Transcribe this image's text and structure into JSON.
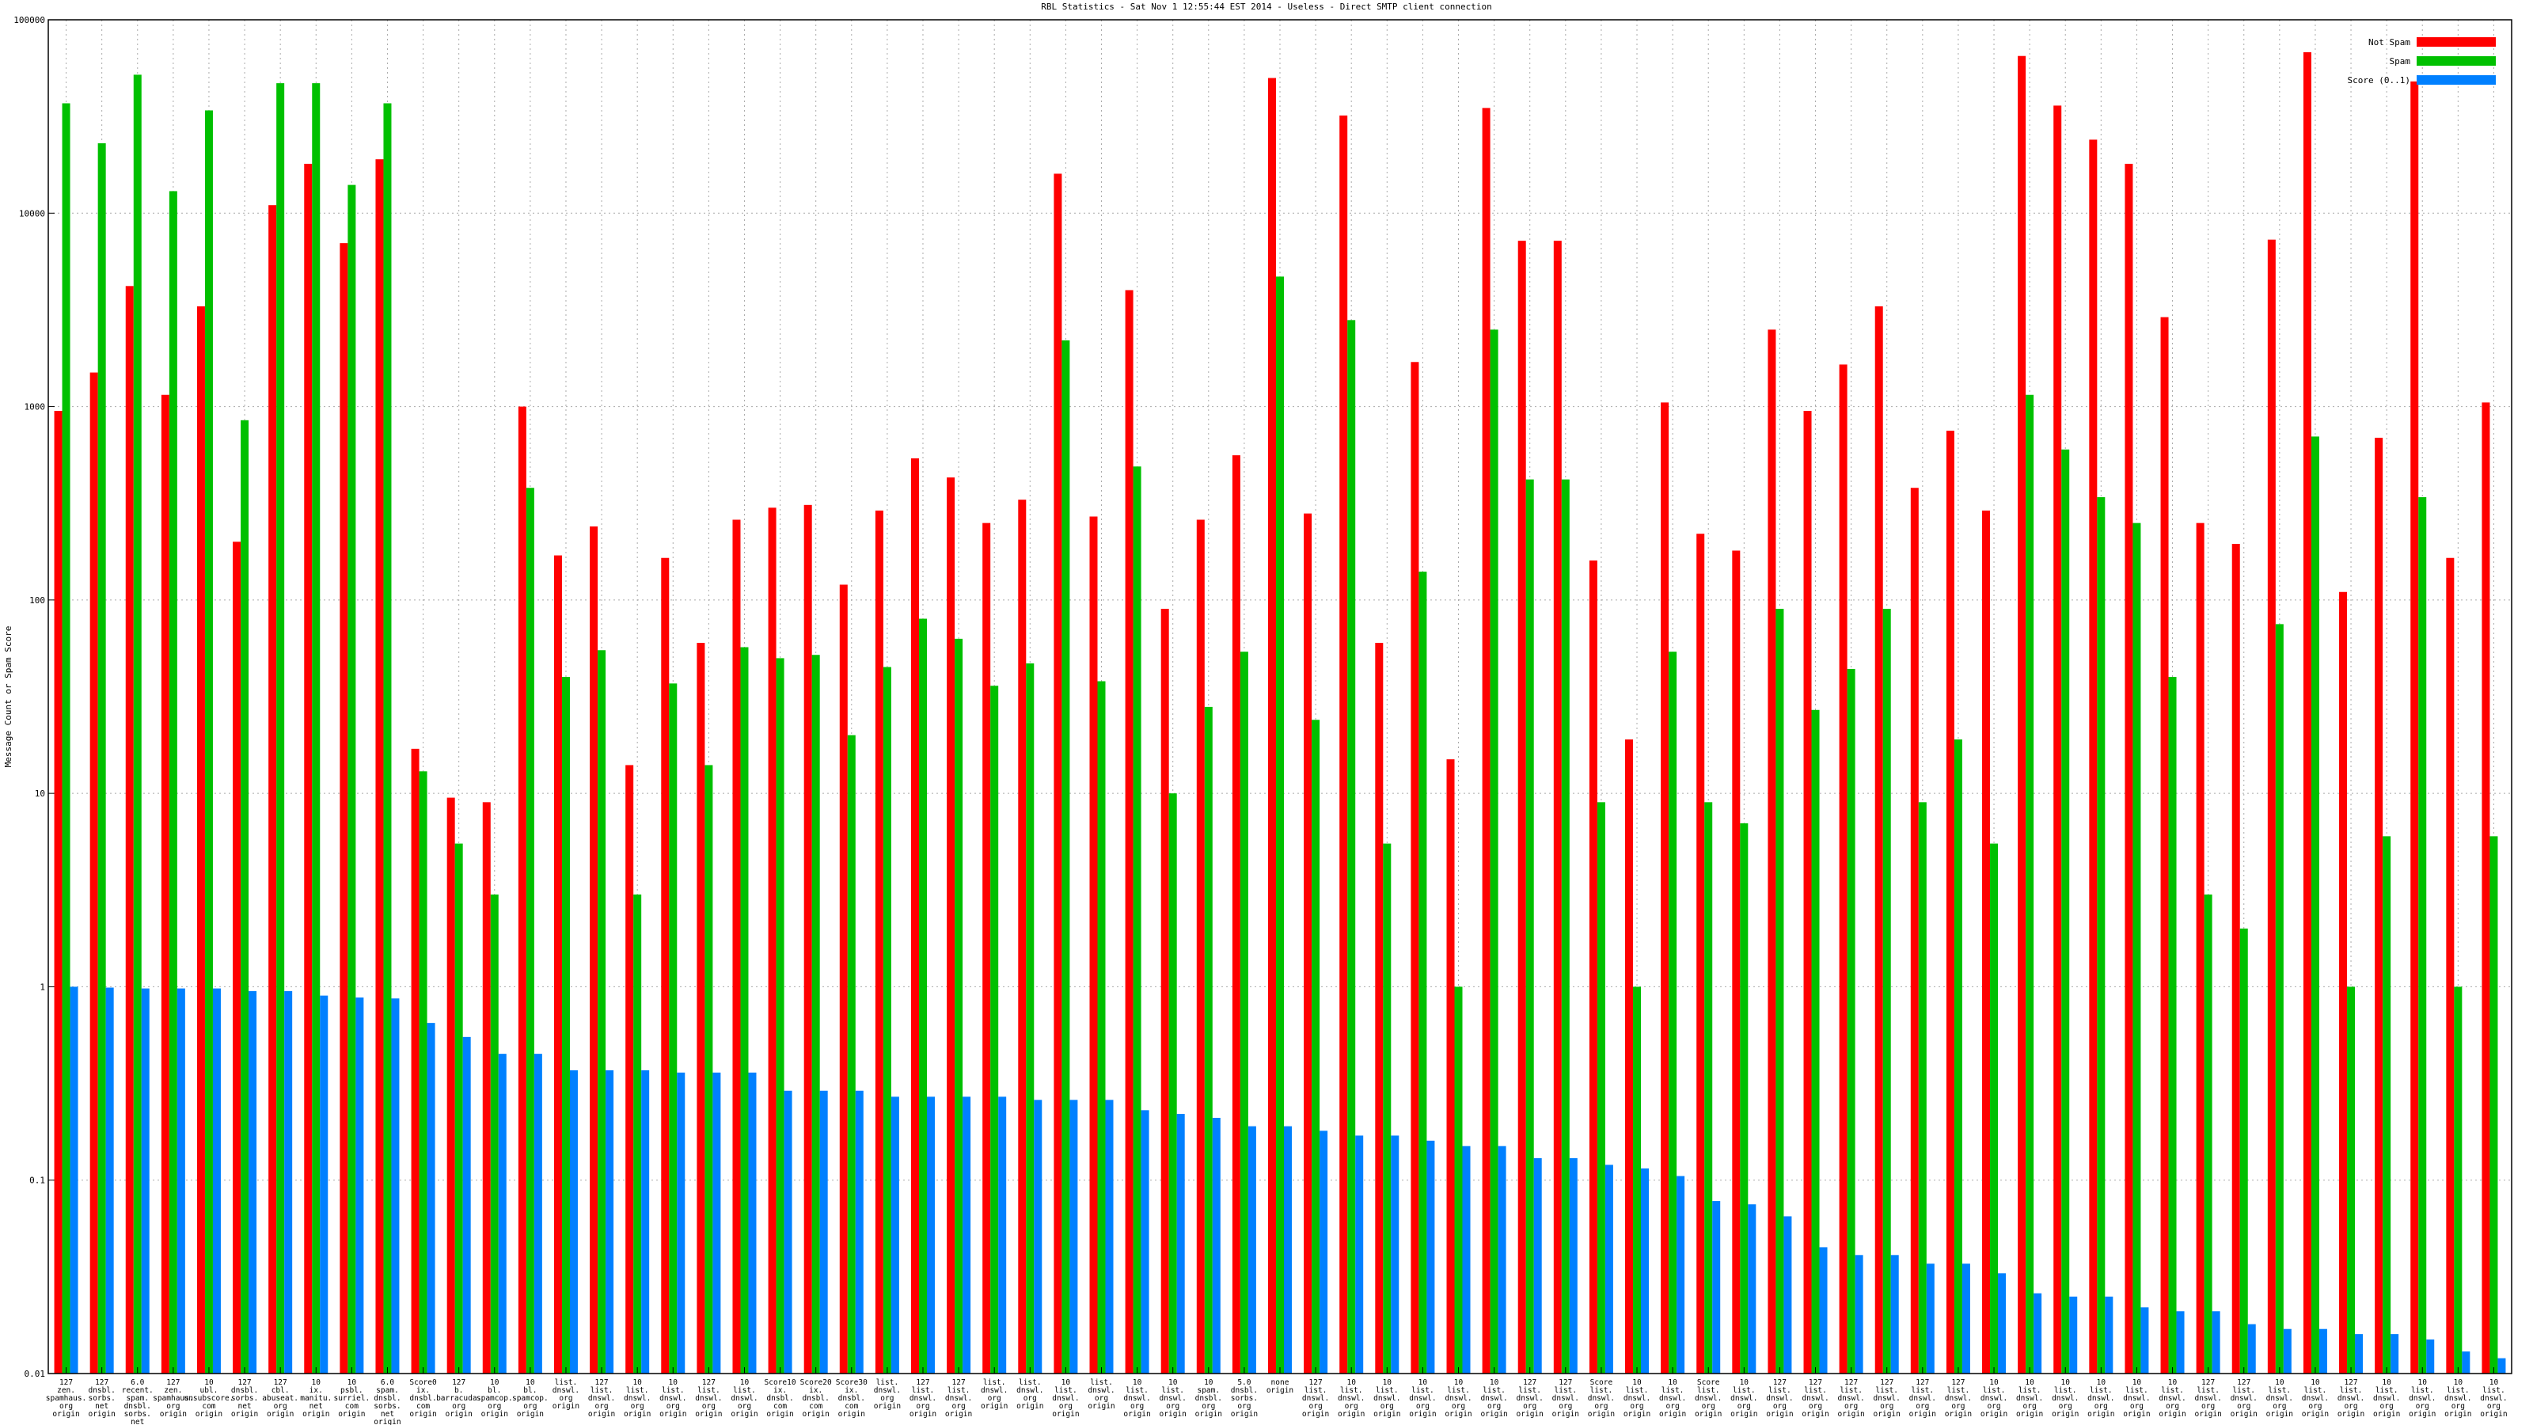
{
  "chart_data": {
    "type": "bar",
    "title": "RBL Statistics - Sat Nov  1 12:55:44 EST 2014 - Useless - Direct SMTP client connection",
    "y_label": "Message Count or Spam Score",
    "log_scale": true,
    "grid": true,
    "legend": "upper right",
    "ylim": [
      0.01,
      100000
    ],
    "yticks": [
      0.01,
      0.1,
      1,
      10,
      100,
      1000,
      10000,
      100000
    ],
    "categories": [
      "127 zen. spamhaus. org origin",
      "127 dnsbl. sorbs. net origin",
      "6.0 recent. spam. dnsbl. sorbs. net origin",
      "127 zen. spamhaus. org origin",
      "10 ubl. unsubscore. com origin",
      "127 dnsbl. sorbs. net origin",
      "127 cbl. abuseat. org origin",
      "10 ix. manitu. net origin",
      "10 psbl. surriel. com origin",
      "6.0 spam. dnsbl. sorbs. net origin",
      "Score0 ix. dnsbl. com origin",
      "127 b. barracuda. org origin",
      "10 bl. spamcop. org origin",
      "10 bl. spamcop. org origin",
      "list. dnswl. org origin",
      "127 list. dnswl. org origin",
      "10 list. dnswl. org origin",
      "10 list. dnswl. org origin",
      "127 list. dnswl. org origin",
      "10 list. dnswl. org origin",
      "Score10 ix. dnsbl. com origin",
      "Score20 ix. dnsbl. com origin",
      "Score30 ix. dnsbl. com origin",
      "list. dnswl. org origin",
      "127 list. dnswl. org origin",
      "127 list. dnswl. org origin",
      "list. dnswl. org origin",
      "list. dnswl. org origin",
      "10 list. dnswl. org origin",
      "list. dnswl. org origin",
      "10 list. dnswl. org origin",
      "10 list. dnswl. org origin",
      "10 spam. dnsbl. org origin",
      "5.0 dnsbl. sorbs. org origin",
      "none origin",
      "127 list. dnswl. org origin",
      "10 list. dnswl. org origin",
      "10 list. dnswl. org origin",
      "10 list. dnswl. org origin",
      "10 list. dnswl. org origin",
      "10 list. dnswl. org origin",
      "127 list. dnswl. org origin",
      "127 list. dnswl. org origin",
      "Score list. dnswl. org origin",
      "10 list. dnswl. org origin",
      "10 list. dnswl. org origin",
      "Score list. dnswl. org origin",
      "10 list. dnswl. org origin",
      "127 list. dnswl. org origin",
      "127 list. dnswl. org origin",
      "127 list. dnswl. org origin",
      "127 list. dnswl. org origin",
      "127 list. dnswl. org origin",
      "127 list. dnswl. org origin",
      "10 list. dnswl. org origin",
      "10 list. dnswl. org origin",
      "10 list. dnswl. org origin",
      "10 list. dnswl. org origin",
      "10 list. dnswl. org origin",
      "10 list. dnswl. org origin",
      "127 list. dnswl. org origin",
      "127 list. dnswl. org origin",
      "10 list. dnswl. org origin",
      "10 list. dnswl. org origin",
      "127 list. dnswl. org origin",
      "10 list. dnswl. org origin",
      "10 list. dnswl. org origin",
      "10 list. dnswl. org origin",
      "10 list. dnswl. org origin"
    ],
    "series": [
      {
        "name": "Not Spam",
        "color": "#ff0000",
        "values": [
          950,
          1500,
          4200,
          1150,
          3300,
          200,
          11000,
          18000,
          7000,
          19000,
          17,
          9.5,
          9,
          1000,
          170,
          240,
          14,
          165,
          60,
          260,
          300,
          310,
          120,
          290,
          540,
          430,
          250,
          330,
          16000,
          270,
          4000,
          90,
          260,
          560,
          50000,
          280,
          32000,
          60,
          1700,
          15,
          35000,
          7200,
          7200,
          160,
          19,
          1050,
          220,
          180,
          2500,
          950,
          1650,
          3300,
          380,
          750,
          290,
          65000,
          36000,
          24000,
          18000,
          2900,
          250,
          195,
          7300,
          68000,
          110,
          690,
          48000,
          165,
          1050
        ]
      },
      {
        "name": "Spam",
        "color": "#00c000",
        "values": [
          37000,
          23000,
          52000,
          13000,
          34000,
          850,
          47000,
          47000,
          14000,
          37000,
          13,
          5.5,
          3,
          380,
          40,
          55,
          3,
          37,
          14,
          57,
          50,
          52,
          20,
          45,
          80,
          63,
          36,
          47,
          2200,
          38,
          490,
          10,
          28,
          54,
          4700,
          24,
          2800,
          5.5,
          140,
          1,
          2500,
          420,
          420,
          9,
          1,
          54,
          9,
          7,
          90,
          27,
          44,
          90,
          9,
          19,
          5.5,
          1150,
          600,
          340,
          250,
          40,
          3,
          2,
          75,
          700,
          1,
          6,
          340,
          1,
          6
        ]
      },
      {
        "name": "Score (0..1)",
        "color": "#0080ff",
        "values": [
          1,
          0.99,
          0.98,
          0.98,
          0.98,
          0.95,
          0.95,
          0.9,
          0.88,
          0.87,
          0.65,
          0.55,
          0.45,
          0.45,
          0.37,
          0.37,
          0.37,
          0.36,
          0.36,
          0.36,
          0.29,
          0.29,
          0.29,
          0.27,
          0.27,
          0.27,
          0.27,
          0.26,
          0.26,
          0.26,
          0.23,
          0.22,
          0.21,
          0.19,
          0.19,
          0.18,
          0.17,
          0.17,
          0.16,
          0.15,
          0.15,
          0.13,
          0.13,
          0.12,
          0.115,
          0.105,
          0.078,
          0.075,
          0.065,
          0.045,
          0.041,
          0.041,
          0.037,
          0.037,
          0.033,
          0.026,
          0.025,
          0.025,
          0.022,
          0.021,
          0.021,
          0.018,
          0.017,
          0.017,
          0.016,
          0.016,
          0.015,
          0.013,
          0.012
        ]
      }
    ]
  }
}
